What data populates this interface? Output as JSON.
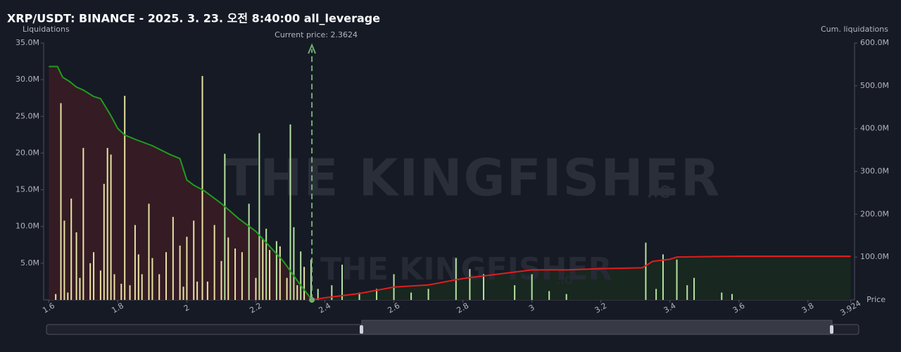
{
  "chart_data": {
    "type": "bar",
    "title": "XRP/USDT: BINANCE - 2025. 3. 23. 오전 8:40:00 all_leverage",
    "y_label": "Liquidations",
    "y2_label": "Cum. liquidations",
    "x_label": "Price",
    "current_price": 2.3624,
    "current_price_label": "Current price: 2.3624",
    "watermark": "THE KINGFISHER",
    "watermark_suffix": ".io",
    "xlim": [
      1.585,
      3.935
    ],
    "xticks": [
      1.6,
      1.8,
      2,
      2.2,
      2.4,
      2.6,
      2.8,
      3,
      3.2,
      3.4,
      3.6,
      3.8,
      3.924
    ],
    "ylim": [
      0,
      35000000
    ],
    "yticks": [
      {
        "value": 5000000,
        "label": "5.0M"
      },
      {
        "value": 10000000,
        "label": "10.0M"
      },
      {
        "value": 15000000,
        "label": "15.0M"
      },
      {
        "value": 20000000,
        "label": "20.0M"
      },
      {
        "value": 25000000,
        "label": "25.0M"
      },
      {
        "value": 30000000,
        "label": "30.0M"
      },
      {
        "value": 35000000,
        "label": "35.0M"
      }
    ],
    "y2lim": [
      0,
      600000000
    ],
    "y2ticks": [
      {
        "value": 100000000,
        "label": "100.0M"
      },
      {
        "value": 200000000,
        "label": "200.0M"
      },
      {
        "value": 300000000,
        "label": "300.0M"
      },
      {
        "value": 400000000,
        "label": "400.0M"
      },
      {
        "value": 500000000,
        "label": "500.0M"
      },
      {
        "value": 600000000,
        "label": "600.0M"
      }
    ],
    "bar_series": [
      {
        "color": "#e6e3a1",
        "x": [
          1.62,
          1.635,
          1.645,
          1.655,
          1.665,
          1.68,
          1.69,
          1.7,
          1.72,
          1.73,
          1.75,
          1.76,
          1.77,
          1.78,
          1.79,
          1.81,
          1.82,
          1.835,
          1.85,
          1.86,
          1.87,
          1.89,
          1.9,
          1.92,
          1.94,
          1.96,
          1.98,
          1.99,
          2.0,
          2.02,
          2.03,
          2.045,
          2.06,
          2.08,
          2.1,
          2.12,
          2.14,
          2.16,
          2.2,
          2.22,
          2.24,
          2.27,
          2.29,
          2.32,
          2.34
        ],
        "values": [
          800000,
          26800000,
          10800000,
          1000000,
          13800000,
          9200000,
          3000000,
          20700000,
          5000000,
          6500000,
          4000000,
          15800000,
          20700000,
          19800000,
          3500000,
          2200000,
          27800000,
          2000000,
          10200000,
          6200000,
          3500000,
          13100000,
          5700000,
          3500000,
          6500000,
          11300000,
          7400000,
          1800000,
          8600000,
          10800000,
          2500000,
          30500000,
          2500000,
          10200000,
          5300000,
          8500000,
          7000000,
          6500000,
          3000000,
          8300000,
          6800000,
          7300000,
          3000000,
          2000000,
          4500000
        ]
      },
      {
        "color": "#b5e3a0",
        "x": [
          2.11,
          2.18,
          2.21,
          2.23,
          2.26,
          2.3,
          2.31,
          2.33,
          2.36,
          2.38,
          2.42,
          2.45,
          2.5,
          2.55,
          2.6,
          2.65,
          2.7,
          2.78,
          2.82,
          2.86,
          2.95,
          3.0,
          3.05,
          3.1,
          3.33,
          3.36,
          3.38,
          3.42,
          3.45,
          3.47,
          3.55,
          3.58
        ],
        "values": [
          19900000,
          13100000,
          22700000,
          9700000,
          8000000,
          23900000,
          9900000,
          6600000,
          5500000,
          1500000,
          2000000,
          4800000,
          1000000,
          1500000,
          3500000,
          1000000,
          1500000,
          5700000,
          4200000,
          3500000,
          2000000,
          3500000,
          1200000,
          800000,
          7800000,
          1500000,
          6200000,
          5500000,
          2000000,
          3000000,
          1000000,
          800000
        ]
      }
    ],
    "lines": [
      {
        "color": "#1f9d1f",
        "fill": "#351b24",
        "axis": "y2",
        "x": [
          1.6,
          1.625,
          1.64,
          1.66,
          1.68,
          1.7,
          1.73,
          1.75,
          1.78,
          1.8,
          1.82,
          1.85,
          1.9,
          1.95,
          1.98,
          2.0,
          2.02,
          2.05,
          2.1,
          2.15,
          2.2,
          2.24,
          2.28,
          2.32,
          2.3624
        ],
        "values": [
          545000000,
          545000000,
          520000000,
          510000000,
          497000000,
          490000000,
          475000000,
          470000000,
          430000000,
          400000000,
          385000000,
          375000000,
          360000000,
          340000000,
          330000000,
          280000000,
          268000000,
          255000000,
          225000000,
          190000000,
          160000000,
          125000000,
          90000000,
          45000000,
          0
        ]
      },
      {
        "color": "#e01e1e",
        "fill": "#18271f",
        "axis": "y2",
        "x": [
          2.3624,
          2.4,
          2.5,
          2.6,
          2.7,
          2.8,
          2.9,
          3.0,
          3.1,
          3.2,
          3.32,
          3.35,
          3.4,
          3.42,
          3.6,
          3.924
        ],
        "values": [
          0,
          5000000,
          15000000,
          30000000,
          35000000,
          50000000,
          60000000,
          70000000,
          70000000,
          73000000,
          75000000,
          90000000,
          95000000,
          100000000,
          102000000,
          102000000
        ]
      }
    ]
  }
}
